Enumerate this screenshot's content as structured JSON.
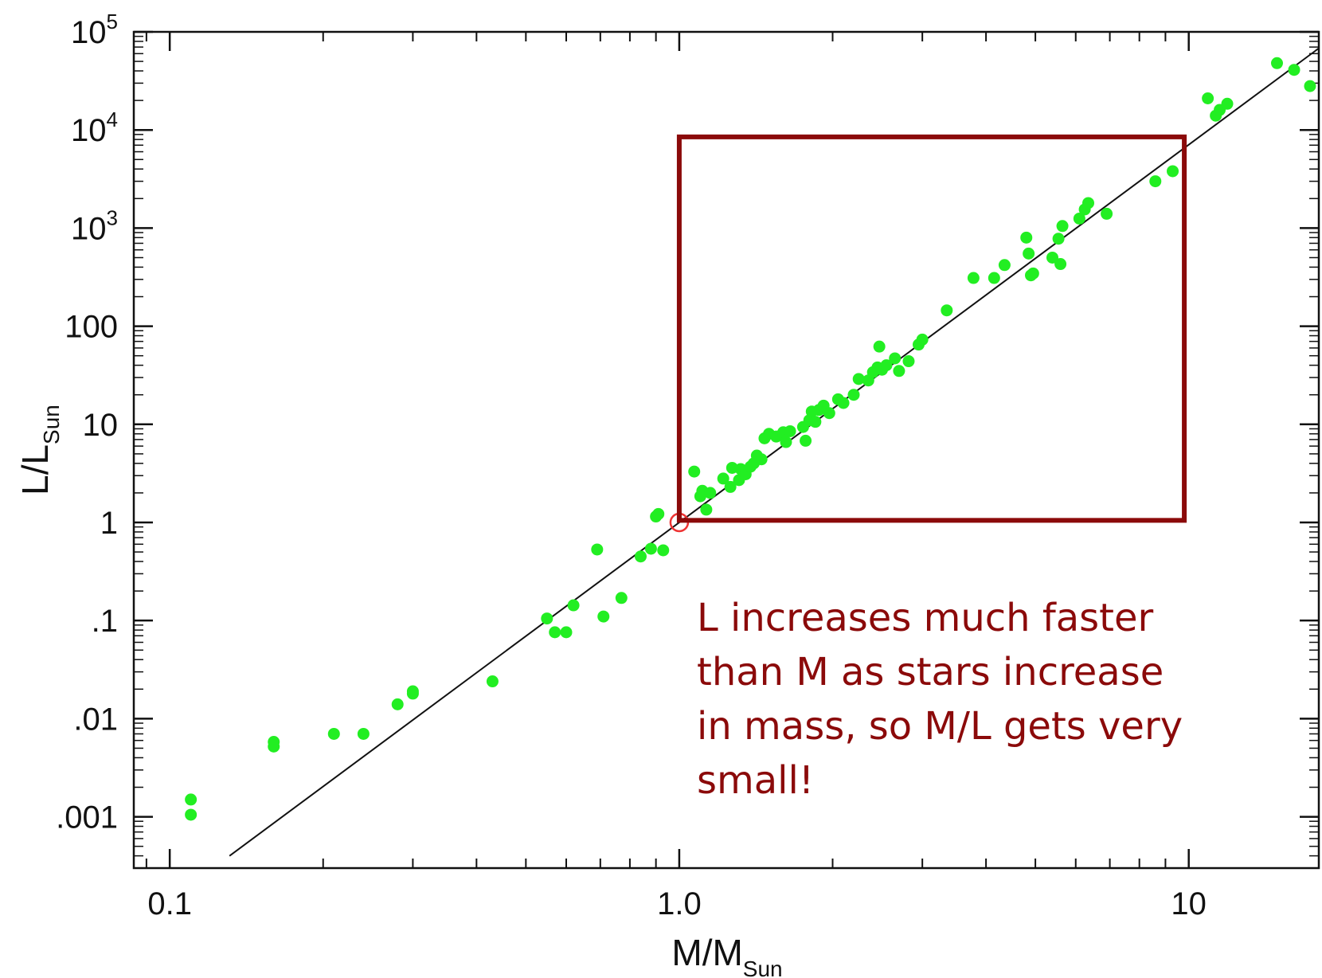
{
  "chart_data": {
    "type": "scatter",
    "title": "",
    "xlabel": {
      "main": "M/M",
      "sub": "Sun"
    },
    "ylabel": {
      "main": "L/L",
      "sub": "Sun"
    },
    "x_scale": "log",
    "y_scale": "log",
    "xlim": [
      0.085,
      18.0
    ],
    "ylim": [
      0.0003,
      100000
    ],
    "x_ticks": [
      {
        "value": 0.1,
        "label": "0.1"
      },
      {
        "value": 1.0,
        "label": "1.0"
      },
      {
        "value": 10,
        "label": "10"
      }
    ],
    "y_ticks": [
      {
        "value": 0.001,
        "label": ".001"
      },
      {
        "value": 0.01,
        "label": ".01"
      },
      {
        "value": 0.1,
        "label": ".1"
      },
      {
        "value": 1,
        "label": "1"
      },
      {
        "value": 10,
        "label": "10"
      },
      {
        "value": 100,
        "label": "100"
      },
      {
        "value": 1000,
        "base": "10",
        "exp": "3"
      },
      {
        "value": 10000,
        "base": "10",
        "exp": "4"
      },
      {
        "value": 100000,
        "base": "10",
        "exp": "5"
      }
    ],
    "grid": false,
    "colors": {
      "points": "#22ee22",
      "line": "#111111",
      "sun_marker": "#ee3333",
      "box": "#8B0A0A",
      "annotation": "#8B0A0A"
    },
    "fit_line": {
      "slope": 3.85,
      "intercept": 1,
      "x_range": [
        0.131,
        18.0
      ]
    },
    "sun_marker": {
      "x": 1.0,
      "y": 1.0
    },
    "highlight_box": {
      "x": [
        1.0,
        9.8
      ],
      "y": [
        1.05,
        8500
      ]
    },
    "annotation_lines": [
      "L increases much faster",
      "than M as stars increase",
      "in mass, so M/L gets very",
      "small!"
    ],
    "points": [
      [
        0.11,
        0.00105
      ],
      [
        0.11,
        0.0015
      ],
      [
        0.16,
        0.0052
      ],
      [
        0.16,
        0.0058
      ],
      [
        0.21,
        0.007
      ],
      [
        0.24,
        0.007
      ],
      [
        0.28,
        0.014
      ],
      [
        0.3,
        0.019
      ],
      [
        0.3,
        0.018
      ],
      [
        0.43,
        0.024
      ],
      [
        0.55,
        0.105
      ],
      [
        0.57,
        0.076
      ],
      [
        0.6,
        0.076
      ],
      [
        0.62,
        0.143
      ],
      [
        0.69,
        0.53
      ],
      [
        0.71,
        0.11
      ],
      [
        0.77,
        0.17
      ],
      [
        0.84,
        0.45
      ],
      [
        0.88,
        0.54
      ],
      [
        0.9,
        1.15
      ],
      [
        0.91,
        1.22
      ],
      [
        0.93,
        0.52
      ],
      [
        1.07,
        3.3
      ],
      [
        1.1,
        1.85
      ],
      [
        1.11,
        2.1
      ],
      [
        1.13,
        1.35
      ],
      [
        1.15,
        2.0
      ],
      [
        1.22,
        2.8
      ],
      [
        1.26,
        2.3
      ],
      [
        1.27,
        3.6
      ],
      [
        1.31,
        2.7
      ],
      [
        1.32,
        3.5
      ],
      [
        1.35,
        3.1
      ],
      [
        1.38,
        3.7
      ],
      [
        1.4,
        4.0
      ],
      [
        1.42,
        4.8
      ],
      [
        1.45,
        4.4
      ],
      [
        1.47,
        7.2
      ],
      [
        1.5,
        8.0
      ],
      [
        1.55,
        7.5
      ],
      [
        1.6,
        8.3
      ],
      [
        1.62,
        6.6
      ],
      [
        1.65,
        8.5
      ],
      [
        1.75,
        9.4
      ],
      [
        1.77,
        6.8
      ],
      [
        1.8,
        11.0
      ],
      [
        1.82,
        13.5
      ],
      [
        1.85,
        10.6
      ],
      [
        1.88,
        14.0
      ],
      [
        1.92,
        15.5
      ],
      [
        1.97,
        13.0
      ],
      [
        2.05,
        18.0
      ],
      [
        2.1,
        16.5
      ],
      [
        2.2,
        20.0
      ],
      [
        2.25,
        29.0
      ],
      [
        2.35,
        28.0
      ],
      [
        2.4,
        34.0
      ],
      [
        2.45,
        38.0
      ],
      [
        2.47,
        62.0
      ],
      [
        2.5,
        36.0
      ],
      [
        2.55,
        40.0
      ],
      [
        2.65,
        47.0
      ],
      [
        2.7,
        35.0
      ],
      [
        2.82,
        44.0
      ],
      [
        2.95,
        65.0
      ],
      [
        3.0,
        73.0
      ],
      [
        3.35,
        145.0
      ],
      [
        3.78,
        310.0
      ],
      [
        4.15,
        310.0
      ],
      [
        4.35,
        420.0
      ],
      [
        4.8,
        800.0
      ],
      [
        4.85,
        550.0
      ],
      [
        4.9,
        330.0
      ],
      [
        4.95,
        345.0
      ],
      [
        5.4,
        500.0
      ],
      [
        5.55,
        780.0
      ],
      [
        5.65,
        1050.0
      ],
      [
        5.6,
        430.0
      ],
      [
        6.1,
        1250.0
      ],
      [
        6.25,
        1550.0
      ],
      [
        6.35,
        1800.0
      ],
      [
        6.9,
        1400.0
      ],
      [
        8.6,
        3000.0
      ],
      [
        9.3,
        3800.0
      ],
      [
        10.9,
        21000.0
      ],
      [
        11.3,
        14000.0
      ],
      [
        11.5,
        16000.0
      ],
      [
        11.9,
        18500.0
      ],
      [
        14.9,
        48000.0
      ],
      [
        16.1,
        41000.0
      ],
      [
        17.3,
        28000.0
      ]
    ]
  }
}
